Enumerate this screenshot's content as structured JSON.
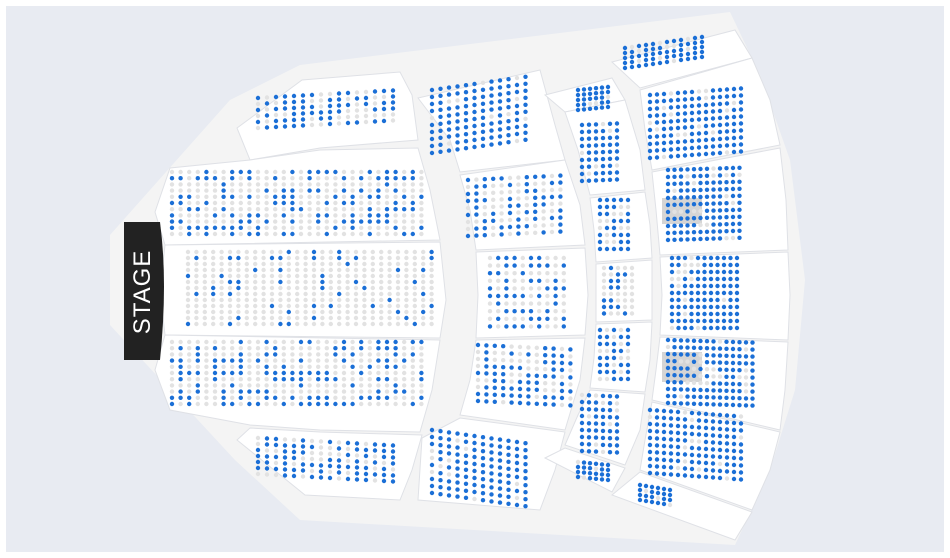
{
  "stage": {
    "label": "STAGE"
  },
  "colors": {
    "background": "#e8ebf2",
    "venue_floor": "#f4f4f4",
    "section_fill": "#ffffff",
    "section_border": "#dfe1e6",
    "seat_available": "#1b6fd6",
    "seat_unavailable": "#e2e2e2",
    "stage_fill": "#222222",
    "stage_text": "#ffffff",
    "blocked_area": "#d5d5d5"
  },
  "legend": {
    "available": "seat-available",
    "unavailable": "seat-unavailable"
  }
}
